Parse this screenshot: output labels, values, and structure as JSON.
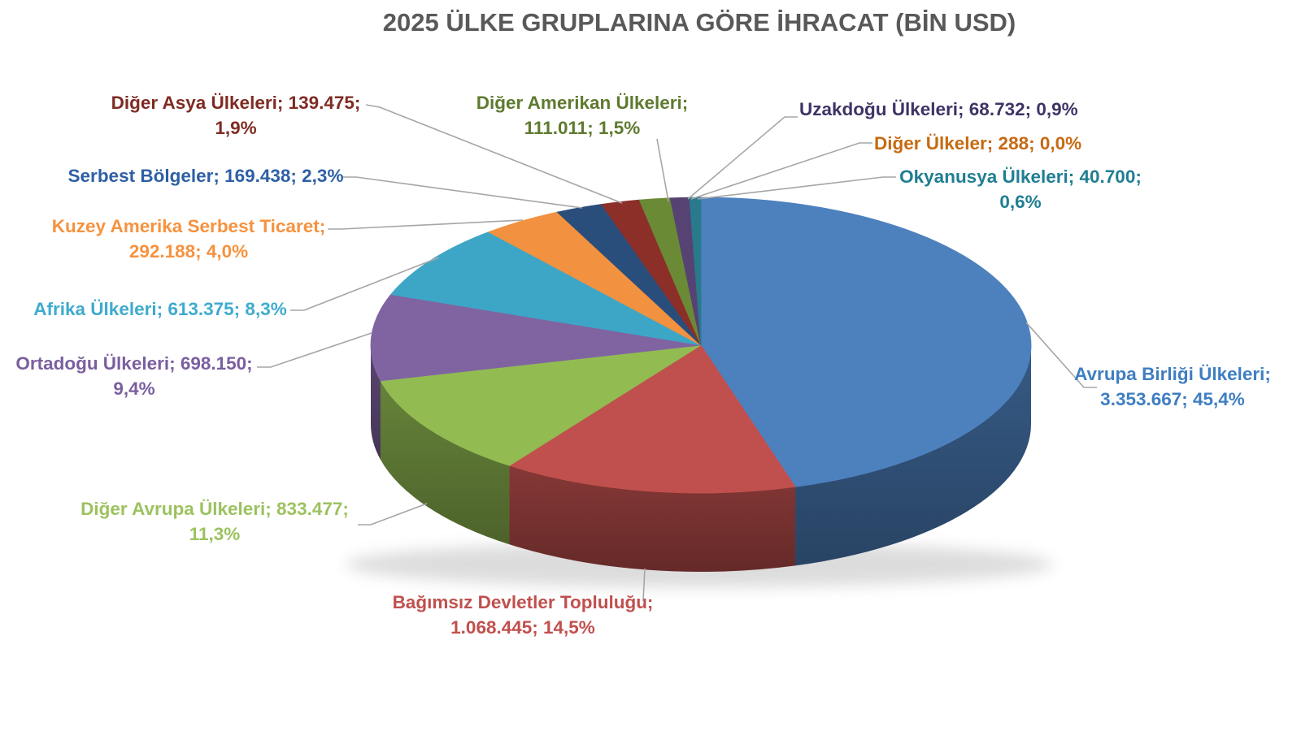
{
  "chart_data": {
    "type": "pie",
    "style": "3d-pie",
    "title": "2025 ÜLKE GRUPLARINA GÖRE İHRACAT (BİN USD)",
    "title_color": "#595959",
    "unit": "BİN USD",
    "legend_position": "none",
    "label_format": "name; value; percent",
    "leader_line_color": "#A6A6A6",
    "background_color": "#FFFFFF",
    "slices": [
      {
        "key": "avrupa-birligi",
        "name": "Avrupa Birliği Ülkeleri",
        "value": 3353667,
        "value_display": "3.353.667",
        "pct": 45.4,
        "pct_display": "45,4%",
        "color": "#4D81BE",
        "label_color": "#3E7EC1",
        "label_lines": [
          "Avrupa Birliği Ülkeleri;",
          "3.353.667; 45,4%"
        ]
      },
      {
        "key": "bagimsiz-devletler",
        "name": "Bağımsız Devletler Topluluğu",
        "value": 1068445,
        "value_display": "1.068.445",
        "pct": 14.5,
        "pct_display": "14,5%",
        "color": "#C0504D",
        "label_color": "#C0504D",
        "label_lines": [
          "Bağımsız Devletler Topluluğu;",
          "1.068.445; 14,5%"
        ]
      },
      {
        "key": "diger-avrupa",
        "name": "Diğer Avrupa Ülkeleri",
        "value": 833477,
        "value_display": "833.477",
        "pct": 11.3,
        "pct_display": "11,3%",
        "color": "#92BB52",
        "label_color": "#9CC25F",
        "label_lines": [
          "Diğer Avrupa Ülkeleri; 833.477;",
          "11,3%"
        ]
      },
      {
        "key": "ortadogu",
        "name": "Ortadoğu Ülkeleri",
        "value": 698150,
        "value_display": "698.150",
        "pct": 9.4,
        "pct_display": "9,4%",
        "color": "#8064A2",
        "label_color": "#7A5F9F",
        "label_lines": [
          "Ortadoğu Ülkeleri; 698.150;",
          "9,4%"
        ]
      },
      {
        "key": "afrika",
        "name": "Afrika Ülkeleri",
        "value": 613375,
        "value_display": "613.375",
        "pct": 8.3,
        "pct_display": "8,3%",
        "color": "#3DA6C6",
        "label_color": "#3EABCE",
        "label_lines": [
          "Afrika Ülkeleri; 613.375; 8,3%"
        ]
      },
      {
        "key": "kuzey-amerika-serbest-ticaret",
        "name": "Kuzey Amerika Serbest Ticaret",
        "value": 292188,
        "value_display": "292.188",
        "pct": 4.0,
        "pct_display": "4,0%",
        "color": "#F2913F",
        "label_color": "#F6923E",
        "label_lines": [
          "Kuzey Amerika Serbest Ticaret;",
          "292.188; 4,0%"
        ]
      },
      {
        "key": "serbest-bolgeler",
        "name": "Serbest Bölgeler",
        "value": 169438,
        "value_display": "169.438",
        "pct": 2.3,
        "pct_display": "2,3%",
        "color": "#2A4E7C",
        "label_color": "#2E5FA5",
        "label_lines": [
          "Serbest Bölgeler; 169.438; 2,3%"
        ]
      },
      {
        "key": "diger-asya",
        "name": "Diğer Asya Ülkeleri",
        "value": 139475,
        "value_display": "139.475",
        "pct": 1.9,
        "pct_display": "1,9%",
        "color": "#8C2F29",
        "label_color": "#7E2B23",
        "label_lines": [
          "Diğer Asya Ülkeleri; 139.475;",
          "1,9%"
        ]
      },
      {
        "key": "diger-amerikan",
        "name": "Diğer Amerikan Ülkeleri",
        "value": 111011,
        "value_display": "111.011",
        "pct": 1.5,
        "pct_display": "1,5%",
        "color": "#6A8A36",
        "label_color": "#5E7A2E",
        "label_lines": [
          "Diğer Amerikan Ülkeleri;",
          "111.011; 1,5%"
        ]
      },
      {
        "key": "uzakdogu",
        "name": "Uzakdoğu Ülkeleri",
        "value": 68732,
        "value_display": "68.732",
        "pct": 0.9,
        "pct_display": "0,9%",
        "color": "#564273",
        "label_color": "#3F3366",
        "label_lines": [
          "Uzakdoğu Ülkeleri; 68.732; 0,9%"
        ]
      },
      {
        "key": "diger-ulkeler",
        "name": "Diğer Ülkeler",
        "value": 288,
        "value_display": "288",
        "pct": 0.0,
        "pct_display": "0,0%",
        "color": "#B65708",
        "label_color": "#C66A12",
        "label_lines": [
          "Diğer Ülkeler; 288; 0,0%"
        ]
      },
      {
        "key": "okyanusya",
        "name": "Okyanusya Ülkeleri",
        "value": 40700,
        "value_display": "40.700",
        "pct": 0.6,
        "pct_display": "0,6%",
        "color": "#287A8C",
        "label_color": "#1F7E92",
        "label_lines": [
          "Okyanusya Ülkeleri; 40.700;",
          "0,6%"
        ]
      }
    ]
  }
}
